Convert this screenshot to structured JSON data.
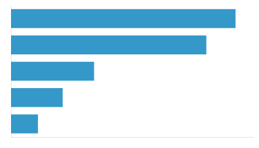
{
  "chart_data": {
    "type": "bar",
    "orientation": "horizontal",
    "categories": [
      null,
      null,
      null,
      null,
      null
    ],
    "values": [
      1.0,
      0.87,
      0.37,
      0.23,
      0.12
    ],
    "color": "#3498c9",
    "xlim": [
      0,
      1.08
    ],
    "grid": false,
    "tick_labels": false
  }
}
